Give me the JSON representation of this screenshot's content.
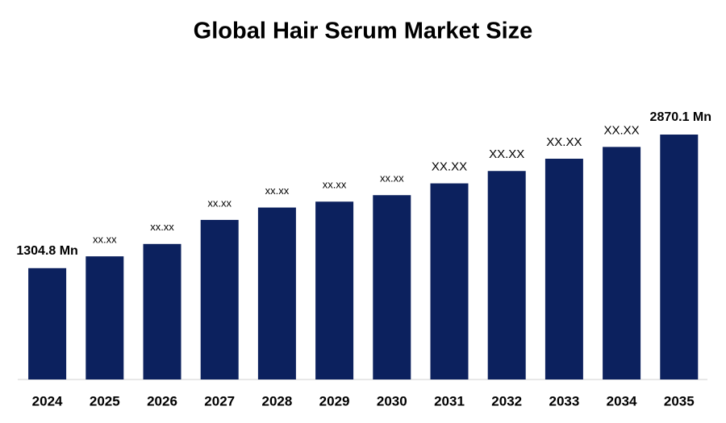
{
  "chart_data": {
    "type": "bar",
    "title": "Global Hair Serum Market Size",
    "categories": [
      "2024",
      "2025",
      "2026",
      "2027",
      "2028",
      "2029",
      "2030",
      "2031",
      "2032",
      "2033",
      "2034",
      "2035"
    ],
    "values": [
      1304.8,
      1443,
      1588,
      1870,
      2015,
      2084,
      2160,
      2298,
      2443,
      2587,
      2725,
      2870.1
    ],
    "value_labels": [
      "1304.8 Mn",
      "xx.xx",
      "xx.xx",
      "xx.xx",
      "xx.xx",
      "xx.xx",
      "xx.xx",
      "XX.XX",
      "XX.XX",
      "XX.XX",
      "XX.XX",
      "2870.1 Mn"
    ],
    "color": "#0c215e"
  }
}
